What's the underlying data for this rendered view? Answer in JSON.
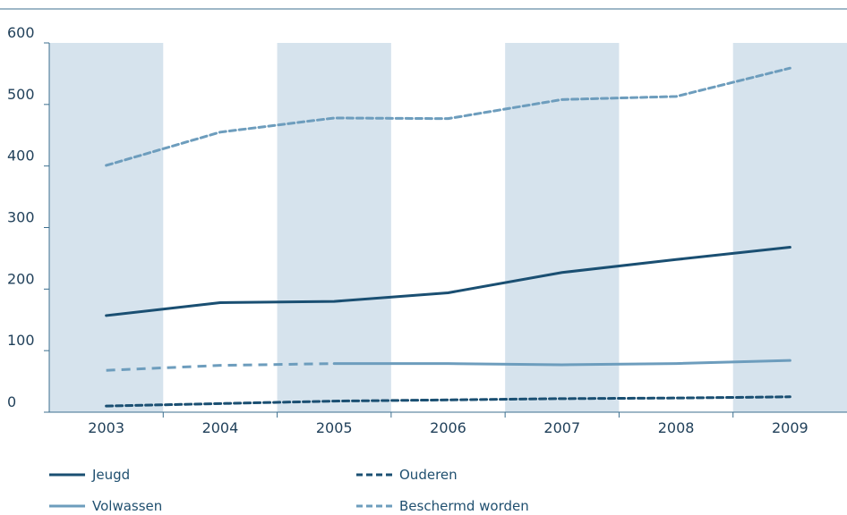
{
  "chart_data": {
    "type": "line",
    "title": "",
    "xlabel": "",
    "ylabel": "",
    "categories": [
      "2003",
      "2004",
      "2005",
      "2006",
      "2007",
      "2008",
      "2009"
    ],
    "ylim": [
      0,
      600
    ],
    "yticks": [
      0,
      100,
      200,
      300,
      400,
      500,
      600
    ],
    "series": [
      {
        "name": "Jeugd",
        "values": [
          157,
          178,
          180,
          194,
          227,
          248,
          268
        ],
        "color": "#1a4f72",
        "style": "solid"
      },
      {
        "name": "Ouderen",
        "values": [
          10,
          14,
          18,
          20,
          22,
          23,
          25
        ],
        "color": "#1a4f72",
        "style": "dashed"
      },
      {
        "name": "Volwassen",
        "values": [
          null,
          null,
          79,
          79,
          77,
          79,
          84
        ],
        "color": "#6d9dbd",
        "style": "solid",
        "dashed_estimate_values": [
          68,
          76,
          79
        ]
      },
      {
        "name": "Beschermd worden",
        "values": [
          401,
          455,
          478,
          477,
          508,
          513,
          559
        ],
        "color": "#6d9dbd",
        "style": "dashed"
      }
    ],
    "grid": false,
    "alternating_bands": true,
    "legend_position": "bottom",
    "band_color": "#d6e3ed",
    "axis_color": "#3c6f8f",
    "tick_text_color": "#1f3f59"
  }
}
